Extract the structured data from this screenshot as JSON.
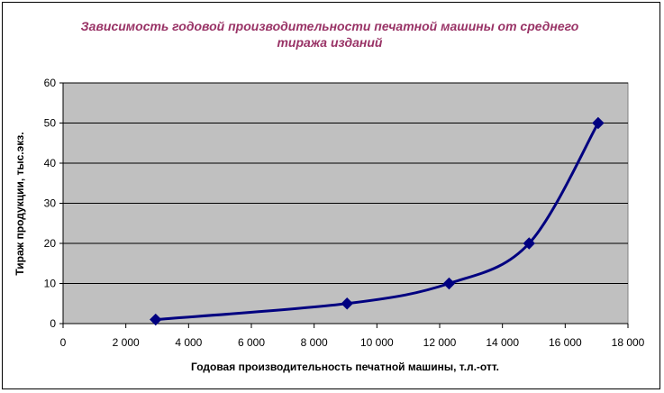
{
  "chart_data": {
    "type": "line",
    "title_lines": [
      "Зависимость годовой производительности печатной машины от среднего",
      "тиража изданий"
    ],
    "xlabel": "Годовая производительность печатной машины, т.л.-отт.",
    "ylabel": "Тираж продукции, тыс.экз.",
    "xlim": [
      0,
      18000
    ],
    "ylim": [
      0,
      60
    ],
    "x_ticks": [
      0,
      2000,
      4000,
      6000,
      8000,
      10000,
      12000,
      14000,
      16000,
      18000
    ],
    "x_tick_labels": [
      "0",
      "2 000",
      "4 000",
      "6 000",
      "8 000",
      "10 000",
      "12 000",
      "14 000",
      "16 000",
      "18 000"
    ],
    "y_ticks": [
      0,
      10,
      20,
      30,
      40,
      50,
      60
    ],
    "y_tick_labels": [
      "0",
      "10",
      "20",
      "30",
      "40",
      "50",
      "60"
    ],
    "grid": true,
    "plot_background": "#c0c0c0",
    "line_color": "#000080",
    "title_color": "#993366",
    "series": [
      {
        "x": [
          2950,
          9050,
          12300,
          14850,
          17050
        ],
        "y": [
          1,
          5,
          10,
          20,
          50
        ],
        "marker": "diamond"
      }
    ]
  }
}
